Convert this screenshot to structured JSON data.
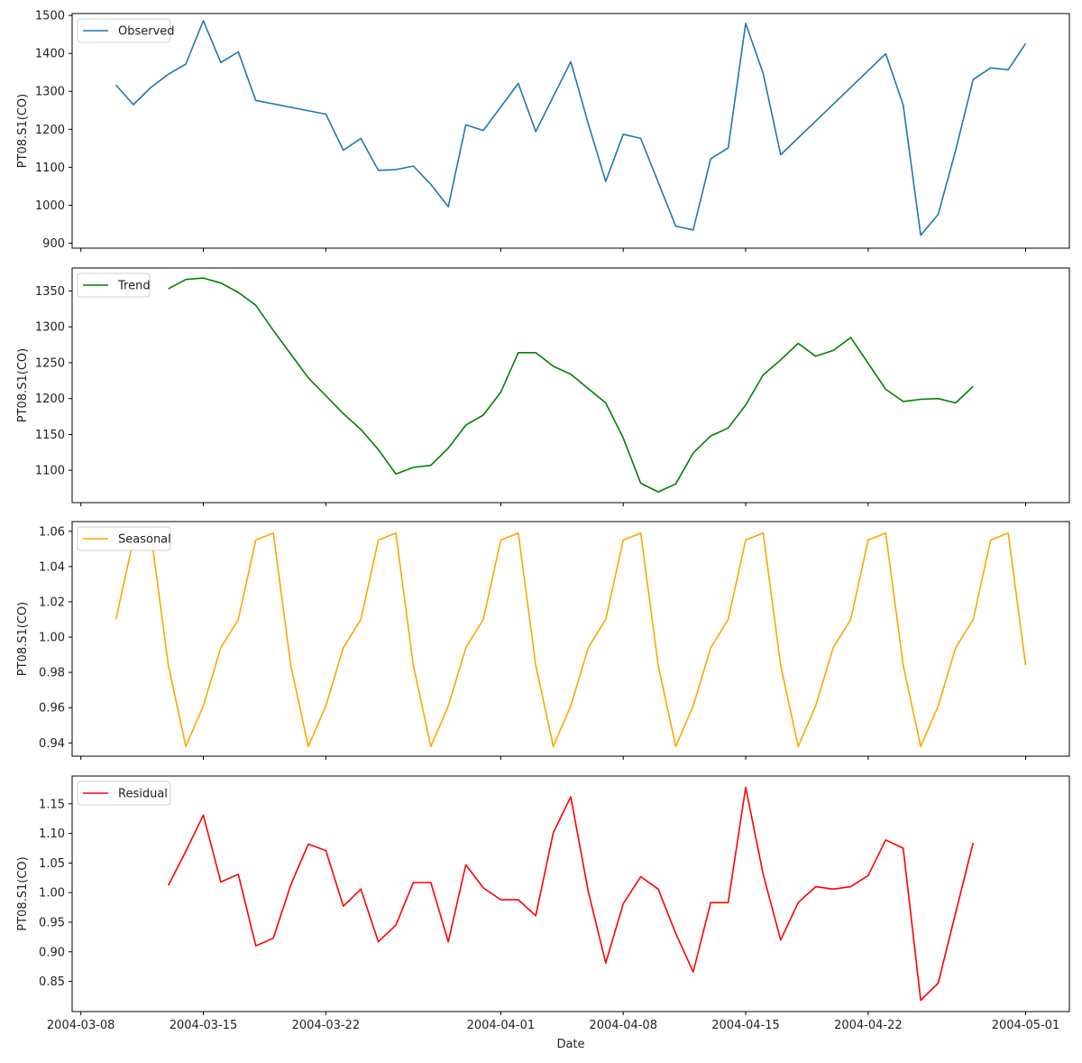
{
  "chart_data": [
    {
      "type": "line",
      "name": "observed-panel",
      "legend": "Observed",
      "color": "#1f77b4",
      "ylabel": "PT08.S1(CO)",
      "xlabel": "",
      "ylim": [
        887,
        1505
      ],
      "yticks": [
        "900",
        "1000",
        "1100",
        "1200",
        "1300",
        "1400",
        "1500"
      ],
      "ytick_values": [
        900,
        1000,
        1100,
        1200,
        1300,
        1400,
        1500
      ],
      "x": [
        "2004-03-10",
        "2004-03-11",
        "2004-03-12",
        "2004-03-13",
        "2004-03-14",
        "2004-03-15",
        "2004-03-16",
        "2004-03-17",
        "2004-03-18",
        "2004-03-22",
        "2004-03-23",
        "2004-03-24",
        "2004-03-25",
        "2004-03-26",
        "2004-03-27",
        "2004-03-28",
        "2004-03-29",
        "2004-03-30",
        "2004-03-31",
        "2004-04-02",
        "2004-04-03",
        "2004-04-05",
        "2004-04-06",
        "2004-04-07",
        "2004-04-08",
        "2004-04-09",
        "2004-04-11",
        "2004-04-12",
        "2004-04-13",
        "2004-04-14",
        "2004-04-15",
        "2004-04-16",
        "2004-04-17",
        "2004-04-23",
        "2004-04-24",
        "2004-04-25",
        "2004-04-26",
        "2004-04-27",
        "2004-04-28",
        "2004-04-29",
        "2004-04-30",
        "2004-05-01"
      ],
      "values": [
        1317,
        1265,
        1310,
        1345,
        1372,
        1486,
        1376,
        1404,
        1276,
        1240,
        1145,
        1176,
        1092,
        1094,
        1103,
        1055,
        996,
        1212,
        1197,
        1321,
        1194,
        1378,
        1215,
        1063,
        1187,
        1176,
        945,
        935,
        1122,
        1151,
        1479,
        1347,
        1133,
        1399,
        1264,
        921,
        976,
        1145,
        1331,
        1362,
        1357,
        1426
      ]
    },
    {
      "type": "line",
      "name": "trend-panel",
      "legend": "Trend",
      "color": "#008000",
      "ylabel": "PT08.S1(CO)",
      "xlabel": "",
      "ylim": [
        1055,
        1382
      ],
      "yticks": [
        "1100",
        "1150",
        "1200",
        "1250",
        "1300",
        "1350"
      ],
      "ytick_values": [
        1100,
        1150,
        1200,
        1250,
        1300,
        1350
      ],
      "x": [
        "2004-03-13",
        "2004-03-14",
        "2004-03-15",
        "2004-03-16",
        "2004-03-17",
        "2004-03-18",
        "2004-03-19",
        "2004-03-20",
        "2004-03-21",
        "2004-03-22",
        "2004-03-23",
        "2004-03-24",
        "2004-03-25",
        "2004-03-26",
        "2004-03-27",
        "2004-03-28",
        "2004-03-29",
        "2004-03-30",
        "2004-03-31",
        "2004-04-01",
        "2004-04-02",
        "2004-04-03",
        "2004-04-04",
        "2004-04-05",
        "2004-04-06",
        "2004-04-07",
        "2004-04-08",
        "2004-04-09",
        "2004-04-10",
        "2004-04-11",
        "2004-04-12",
        "2004-04-13",
        "2004-04-14",
        "2004-04-15",
        "2004-04-16",
        "2004-04-17",
        "2004-04-18",
        "2004-04-19",
        "2004-04-20",
        "2004-04-21",
        "2004-04-22",
        "2004-04-23",
        "2004-04-24",
        "2004-04-25",
        "2004-04-26",
        "2004-04-27",
        "2004-04-28"
      ],
      "values": [
        1353,
        1366,
        1368,
        1361,
        1348,
        1330,
        1295,
        1262,
        1229,
        1204,
        1179,
        1157,
        1129,
        1095,
        1104,
        1107,
        1131,
        1163,
        1177,
        1209,
        1264,
        1264,
        1245,
        1234,
        1214,
        1194,
        1145,
        1082,
        1070,
        1081,
        1124,
        1148,
        1159,
        1191,
        1233,
        1254,
        1277,
        1259,
        1267,
        1285,
        1249,
        1213,
        1196,
        1199,
        1200,
        1194,
        1217
      ]
    },
    {
      "type": "line",
      "name": "seasonal-panel",
      "legend": "Seasonal",
      "color": "#ffa500",
      "ylabel": "PT08.S1(CO)",
      "xlabel": "",
      "ylim": [
        0.9325,
        1.0655
      ],
      "yticks": [
        "0.94",
        "0.96",
        "0.98",
        "1.00",
        "1.02",
        "1.04",
        "1.06"
      ],
      "ytick_values": [
        0.94,
        0.96,
        0.98,
        1.0,
        1.02,
        1.04,
        1.06
      ],
      "x": [
        "2004-03-10",
        "2004-03-11",
        "2004-03-12",
        "2004-03-13",
        "2004-03-14",
        "2004-03-15",
        "2004-03-16",
        "2004-03-17",
        "2004-03-18",
        "2004-03-19",
        "2004-03-20",
        "2004-03-21",
        "2004-03-22",
        "2004-03-23",
        "2004-03-24",
        "2004-03-25",
        "2004-03-26",
        "2004-03-27",
        "2004-03-28",
        "2004-03-29",
        "2004-03-30",
        "2004-03-31",
        "2004-04-01",
        "2004-04-02",
        "2004-04-03",
        "2004-04-04",
        "2004-04-05",
        "2004-04-06",
        "2004-04-07",
        "2004-04-08",
        "2004-04-09",
        "2004-04-10",
        "2004-04-11",
        "2004-04-12",
        "2004-04-13",
        "2004-04-14",
        "2004-04-15",
        "2004-04-16",
        "2004-04-17",
        "2004-04-18",
        "2004-04-19",
        "2004-04-20",
        "2004-04-21",
        "2004-04-22",
        "2004-04-23",
        "2004-04-24",
        "2004-04-25",
        "2004-04-26",
        "2004-04-27",
        "2004-04-28",
        "2004-04-29",
        "2004-04-30",
        "2004-05-01"
      ],
      "values": [
        1.01,
        1.055,
        1.059,
        0.984,
        0.938,
        0.961,
        0.994,
        1.01,
        1.055,
        1.059,
        0.984,
        0.938,
        0.961,
        0.994,
        1.01,
        1.055,
        1.059,
        0.984,
        0.938,
        0.961,
        0.994,
        1.01,
        1.055,
        1.059,
        0.984,
        0.938,
        0.961,
        0.994,
        1.01,
        1.055,
        1.059,
        0.984,
        0.938,
        0.961,
        0.994,
        1.01,
        1.055,
        1.059,
        0.984,
        0.938,
        0.961,
        0.994,
        1.01,
        1.055,
        1.059,
        0.984,
        0.938,
        0.961,
        0.994,
        1.01,
        1.055,
        1.059,
        0.984
      ]
    },
    {
      "type": "line",
      "name": "residual-panel",
      "legend": "Residual",
      "color": "#ff0000",
      "ylabel": "PT08.S1(CO)",
      "xlabel": "Date",
      "ylim": [
        0.799,
        1.197
      ],
      "yticks": [
        "0.85",
        "0.90",
        "0.95",
        "1.00",
        "1.05",
        "1.10",
        "1.15"
      ],
      "ytick_values": [
        0.85,
        0.9,
        0.95,
        1.0,
        1.05,
        1.1,
        1.15
      ],
      "xticks": [
        "2004-03-08",
        "2004-03-15",
        "2004-03-22",
        "2004-04-01",
        "2004-04-08",
        "2004-04-15",
        "2004-04-22",
        "2004-05-01"
      ],
      "x": [
        "2004-03-13",
        "2004-03-14",
        "2004-03-15",
        "2004-03-16",
        "2004-03-17",
        "2004-03-18",
        "2004-03-19",
        "2004-03-20",
        "2004-03-21",
        "2004-03-22",
        "2004-03-23",
        "2004-03-24",
        "2004-03-25",
        "2004-03-26",
        "2004-03-27",
        "2004-03-28",
        "2004-03-29",
        "2004-03-30",
        "2004-03-31",
        "2004-04-01",
        "2004-04-02",
        "2004-04-03",
        "2004-04-04",
        "2004-04-05",
        "2004-04-06",
        "2004-04-07",
        "2004-04-08",
        "2004-04-09",
        "2004-04-10",
        "2004-04-11",
        "2004-04-12",
        "2004-04-13",
        "2004-04-14",
        "2004-04-15",
        "2004-04-16",
        "2004-04-17",
        "2004-04-18",
        "2004-04-19",
        "2004-04-20",
        "2004-04-21",
        "2004-04-22",
        "2004-04-23",
        "2004-04-24",
        "2004-04-25",
        "2004-04-26",
        "2004-04-27",
        "2004-04-28"
      ],
      "values": [
        1.012,
        1.07,
        1.131,
        1.018,
        1.031,
        0.91,
        0.923,
        1.013,
        1.082,
        1.071,
        0.977,
        1.006,
        0.917,
        0.945,
        1.017,
        1.017,
        0.917,
        1.047,
        1.008,
        0.988,
        0.988,
        0.961,
        1.101,
        1.162,
        1.002,
        0.881,
        0.981,
        1.027,
        1.006,
        0.931,
        0.866,
        0.983,
        0.983,
        1.178,
        1.031,
        0.92,
        0.983,
        1.01,
        1.006,
        1.01,
        1.029,
        1.089,
        1.075,
        0.818,
        0.847,
        0.966,
        1.084
      ]
    }
  ]
}
